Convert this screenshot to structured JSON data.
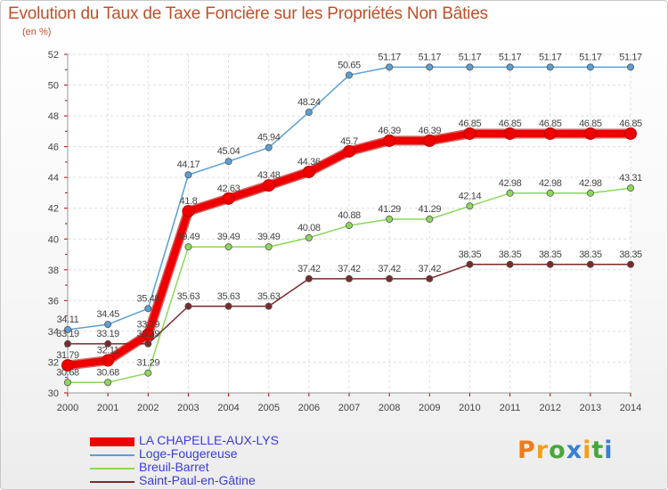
{
  "chart_data": {
    "type": "line",
    "title": "Evolution du Taux de Taxe Foncière sur les Propriétés Non Bâties",
    "ylabel": "(en %)",
    "xlabel": "",
    "x": [
      "2000",
      "2001",
      "2002",
      "2003",
      "2004",
      "2005",
      "2006",
      "2007",
      "2008",
      "2009",
      "2010",
      "2011",
      "2012",
      "2013",
      "2014"
    ],
    "ylim": [
      30,
      52
    ],
    "yticks": [
      30,
      32,
      34,
      36,
      38,
      40,
      42,
      44,
      46,
      48,
      50,
      52
    ],
    "grid": true,
    "legend_position": "bottom-left",
    "series": [
      {
        "name": "LA CHAPELLE-AUX-LYS",
        "color": "#ee0000",
        "values": [
          31.79,
          32.11,
          33.79,
          41.8,
          42.63,
          43.48,
          44.36,
          45.7,
          46.39,
          46.39,
          46.85,
          46.85,
          46.85,
          46.85,
          46.85
        ],
        "labels": [
          "31.79",
          "32.11",
          "33.79",
          "41.8",
          "42.63",
          "43.48",
          "44.36",
          "45.7",
          "46.39",
          "46.39",
          "46.85",
          "46.85",
          "46.85",
          "46.85",
          "46.85"
        ]
      },
      {
        "name": "Loge-Fougereuse",
        "color": "#5a9fd4",
        "values": [
          34.11,
          34.45,
          35.48,
          44.17,
          45.04,
          45.94,
          48.24,
          50.65,
          51.17,
          51.17,
          51.17,
          51.17,
          51.17,
          51.17,
          51.17
        ],
        "labels": [
          "34.11",
          "34.45",
          "35.48",
          "44.17",
          "45.04",
          "45.94",
          "48.24",
          "50.65",
          "51.17",
          "51.17",
          "51.17",
          "51.17",
          "51.17",
          "51.17",
          "51.17"
        ]
      },
      {
        "name": "Breuil-Barret",
        "color": "#8bd85a",
        "values": [
          30.68,
          30.68,
          31.29,
          39.49,
          39.49,
          39.49,
          40.08,
          40.88,
          41.29,
          41.29,
          42.14,
          42.98,
          42.98,
          42.98,
          43.31
        ],
        "labels": [
          "30.68",
          "30.68",
          "31.29",
          "39.49",
          "39.49",
          "39.49",
          "40.08",
          "40.88",
          "41.29",
          "41.29",
          "42.14",
          "42.98",
          "42.98",
          "42.98",
          "43.31"
        ]
      },
      {
        "name": "Saint-Paul-en-Gâtine",
        "color": "#7a2a2a",
        "values": [
          33.19,
          33.19,
          33.19,
          35.63,
          35.63,
          35.63,
          37.42,
          37.42,
          37.42,
          37.42,
          38.35,
          38.35,
          38.35,
          38.35,
          38.35
        ],
        "labels": [
          "33.19",
          "33.19",
          "33.19",
          "35.63",
          "35.63",
          "35.63",
          "37.42",
          "37.42",
          "37.42",
          "37.42",
          "38.35",
          "38.35",
          "38.35",
          "38.35",
          "38.35"
        ]
      }
    ]
  },
  "logo": {
    "text": "Proxiti",
    "colors": [
      "#f07b1a",
      "#f0a01a",
      "#4aa63c",
      "#3a7fd0",
      "#f0a01a",
      "#4aa63c",
      "#3a7fd0"
    ]
  }
}
